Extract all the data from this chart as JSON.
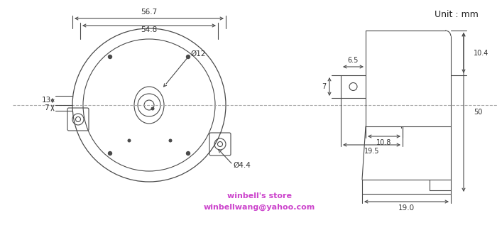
{
  "bg_color": "#ffffff",
  "line_color": "#4a4a4a",
  "text_color": "#333333",
  "magenta_color": "#cc44cc",
  "dash_color": "#aaaaaa",
  "unit_text": "Unit : mm",
  "store_text1": "winbell's store",
  "store_text2": "winbellwang@yahoo.com",
  "dims": {
    "d_567": "56.7",
    "d_548": "54.8",
    "d_12": "Ø12",
    "d_44": "Ø4.4",
    "d_13": "13",
    "d_7": "7",
    "d_104": "10.4",
    "d_65": "6.5",
    "d_7r": "7",
    "d_108": "10.8",
    "d_195": "19.5",
    "d_50": "50",
    "d_190": "19.0"
  }
}
